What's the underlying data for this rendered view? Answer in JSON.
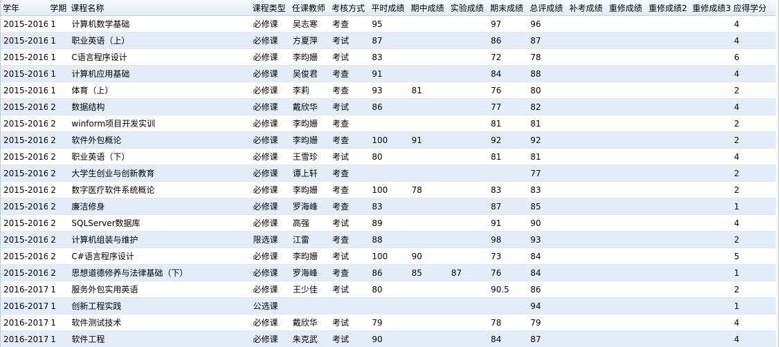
{
  "headers": {
    "year": "学年",
    "term": "学期",
    "course": "课程名称",
    "type": "课程类型",
    "teacher": "任课教师",
    "exam": "考核方式",
    "usual": "平时成绩",
    "midterm": "期中成绩",
    "lab": "实验成绩",
    "final": "期末成绩",
    "total": "总评成绩",
    "makeup": "补考成绩",
    "retake1": "重修成绩",
    "retake2": "重修成绩2",
    "retake3": "重修成绩3",
    "credit": "应得学分"
  },
  "rows": [
    {
      "year": "2015-2016",
      "term": "1",
      "course": "计算机数学基础",
      "type": "必修课",
      "teacher": "吴志寒",
      "exam": "考查",
      "usual": "95",
      "midterm": "",
      "lab": "",
      "final": "97",
      "total": "96",
      "makeup": "",
      "retake1": "",
      "retake2": "",
      "retake3": "",
      "credit": "4"
    },
    {
      "year": "2015-2016",
      "term": "1",
      "course": "职业英语（上）",
      "type": "必修课",
      "teacher": "方夏萍",
      "exam": "考试",
      "usual": "87",
      "midterm": "",
      "lab": "",
      "final": "86",
      "total": "87",
      "makeup": "",
      "retake1": "",
      "retake2": "",
      "retake3": "",
      "credit": "4"
    },
    {
      "year": "2015-2016",
      "term": "1",
      "course": "C语言程序设计",
      "type": "必修课",
      "teacher": "李昀姗",
      "exam": "考试",
      "usual": "83",
      "midterm": "",
      "lab": "",
      "final": "72",
      "total": "78",
      "makeup": "",
      "retake1": "",
      "retake2": "",
      "retake3": "",
      "credit": "6"
    },
    {
      "year": "2015-2016",
      "term": "1",
      "course": "计算机应用基础",
      "type": "必修课",
      "teacher": "吴俊君",
      "exam": "考查",
      "usual": "91",
      "midterm": "",
      "lab": "",
      "final": "84",
      "total": "88",
      "makeup": "",
      "retake1": "",
      "retake2": "",
      "retake3": "",
      "credit": "4"
    },
    {
      "year": "2015-2016",
      "term": "1",
      "course": "体育（上）",
      "type": "必修课",
      "teacher": "李莉",
      "exam": "考查",
      "usual": "93",
      "midterm": "81",
      "lab": "",
      "final": "76",
      "total": "80",
      "makeup": "",
      "retake1": "",
      "retake2": "",
      "retake3": "",
      "credit": "2"
    },
    {
      "year": "2015-2016",
      "term": "2",
      "course": "数据结构",
      "type": "必修课",
      "teacher": "戴欣华",
      "exam": "考试",
      "usual": "86",
      "midterm": "",
      "lab": "",
      "final": "77",
      "total": "82",
      "makeup": "",
      "retake1": "",
      "retake2": "",
      "retake3": "",
      "credit": "4"
    },
    {
      "year": "2015-2016",
      "term": "2",
      "course": "winform项目开发实训",
      "type": "必修课",
      "teacher": "李昀姗",
      "exam": "考查",
      "usual": "",
      "midterm": "",
      "lab": "",
      "final": "81",
      "total": "81",
      "makeup": "",
      "retake1": "",
      "retake2": "",
      "retake3": "",
      "credit": "2"
    },
    {
      "year": "2015-2016",
      "term": "2",
      "course": "软件外包概论",
      "type": "必修课",
      "teacher": "李昀姗",
      "exam": "考查",
      "usual": "100",
      "midterm": "91",
      "lab": "",
      "final": "92",
      "total": "92",
      "makeup": "",
      "retake1": "",
      "retake2": "",
      "retake3": "",
      "credit": "2"
    },
    {
      "year": "2015-2016",
      "term": "2",
      "course": "职业英语（下）",
      "type": "必修课",
      "teacher": "王雪珍",
      "exam": "考试",
      "usual": "80",
      "midterm": "",
      "lab": "",
      "final": "81",
      "total": "81",
      "makeup": "",
      "retake1": "",
      "retake2": "",
      "retake3": "",
      "credit": "4"
    },
    {
      "year": "2015-2016",
      "term": "2",
      "course": "大学生创业与创新教育",
      "type": "必修课",
      "teacher": "谭上轩",
      "exam": "考查",
      "usual": "",
      "midterm": "",
      "lab": "",
      "final": "",
      "total": "77",
      "makeup": "",
      "retake1": "",
      "retake2": "",
      "retake3": "",
      "credit": "2"
    },
    {
      "year": "2015-2016",
      "term": "2",
      "course": "数字医疗软件系统概论",
      "type": "必修课",
      "teacher": "李昀姗",
      "exam": "考查",
      "usual": "100",
      "midterm": "78",
      "lab": "",
      "final": "83",
      "total": "83",
      "makeup": "",
      "retake1": "",
      "retake2": "",
      "retake3": "",
      "credit": "2"
    },
    {
      "year": "2015-2016",
      "term": "2",
      "course": "廉洁修身",
      "type": "必修课",
      "teacher": "罗海峰",
      "exam": "考查",
      "usual": "83",
      "midterm": "",
      "lab": "",
      "final": "87",
      "total": "85",
      "makeup": "",
      "retake1": "",
      "retake2": "",
      "retake3": "",
      "credit": "1"
    },
    {
      "year": "2015-2016",
      "term": "2",
      "course": "SQLServer数据库",
      "type": "必修课",
      "teacher": "高强",
      "exam": "考试",
      "usual": "89",
      "midterm": "",
      "lab": "",
      "final": "91",
      "total": "90",
      "makeup": "",
      "retake1": "",
      "retake2": "",
      "retake3": "",
      "credit": "4"
    },
    {
      "year": "2015-2016",
      "term": "2",
      "course": "计算机组装与维护",
      "type": "限选课",
      "teacher": "江雷",
      "exam": "考查",
      "usual": "88",
      "midterm": "",
      "lab": "",
      "final": "98",
      "total": "93",
      "makeup": "",
      "retake1": "",
      "retake2": "",
      "retake3": "",
      "credit": "2"
    },
    {
      "year": "2015-2016",
      "term": "2",
      "course": "C#语言程序设计",
      "type": "必修课",
      "teacher": "李昀姗",
      "exam": "考试",
      "usual": "100",
      "midterm": "90",
      "lab": "",
      "final": "73",
      "total": "84",
      "makeup": "",
      "retake1": "",
      "retake2": "",
      "retake3": "",
      "credit": "5"
    },
    {
      "year": "2015-2016",
      "term": "2",
      "course": "思想道德修养与法律基础（下）",
      "type": "必修课",
      "teacher": "罗海峰",
      "exam": "考查",
      "usual": "86",
      "midterm": "85",
      "lab": "87",
      "final": "76",
      "total": "84",
      "makeup": "",
      "retake1": "",
      "retake2": "",
      "retake3": "",
      "credit": "1"
    },
    {
      "year": "2016-2017",
      "term": "1",
      "course": "服务外包实用英语",
      "type": "必修课",
      "teacher": "王少佳",
      "exam": "考试",
      "usual": "80",
      "midterm": "",
      "lab": "",
      "final": "90.5",
      "total": "86",
      "makeup": "",
      "retake1": "",
      "retake2": "",
      "retake3": "",
      "credit": "2"
    },
    {
      "year": "2016-2017",
      "term": "1",
      "course": "创新工程实践",
      "type": "公选课",
      "teacher": "",
      "exam": "",
      "usual": "",
      "midterm": "",
      "lab": "",
      "final": "",
      "total": "94",
      "makeup": "",
      "retake1": "",
      "retake2": "",
      "retake3": "",
      "credit": "1"
    },
    {
      "year": "2016-2017",
      "term": "1",
      "course": "软件测试技术",
      "type": "必修课",
      "teacher": "戴欣华",
      "exam": "考试",
      "usual": "79",
      "midterm": "",
      "lab": "",
      "final": "78",
      "total": "79",
      "makeup": "",
      "retake1": "",
      "retake2": "",
      "retake3": "",
      "credit": "4"
    },
    {
      "year": "2016-2017",
      "term": "1",
      "course": "软件工程",
      "type": "必修课",
      "teacher": "朱克武",
      "exam": "考试",
      "usual": "90",
      "midterm": "",
      "lab": "",
      "final": "84",
      "total": "87",
      "makeup": "",
      "retake1": "",
      "retake2": "",
      "retake3": "",
      "credit": "4"
    }
  ]
}
